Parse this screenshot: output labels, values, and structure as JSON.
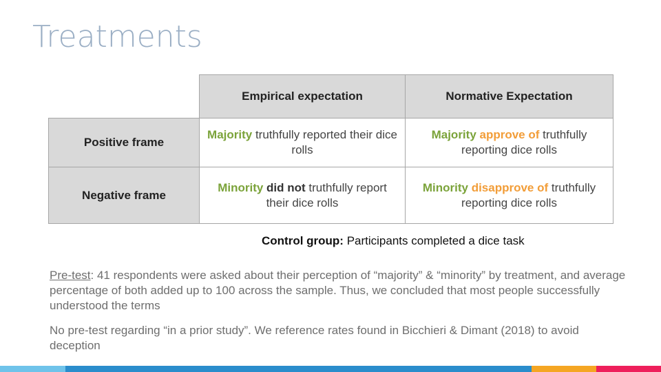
{
  "title": "Treatments",
  "table": {
    "col_headers": [
      "Empirical expectation",
      "Normative Expectation"
    ],
    "rows": [
      {
        "label": "Positive frame",
        "empirical": {
          "highlight": "Majority",
          "rest": " truthfully reported their dice rolls"
        },
        "normative": {
          "highlight": "Majority",
          "highlight2": " approve of",
          "rest": " truthfully reporting dice rolls"
        }
      },
      {
        "label": "Negative frame",
        "empirical": {
          "highlight": "Minority",
          "bold": " did not",
          "rest": " truthfully report their dice rolls"
        },
        "normative": {
          "highlight": "Minority",
          "highlight2": " disapprove of",
          "rest": " truthfully reporting dice rolls"
        }
      }
    ]
  },
  "control": {
    "label": "Control group:",
    "text": " Participants completed a dice task"
  },
  "pretest": {
    "label": "Pre-test",
    "text": ": 41 respondents were asked about their perception of “majority” & “minority” by treatment, and average percentage of both added up to 100 across the sample.  Thus, we concluded that most people successfully understood the terms"
  },
  "note": "No pre-test regarding “in a prior study”. We reference rates found in Bicchieri & Dimant (2018) to avoid deception",
  "colors": {
    "title": "#9aaec4",
    "green_accent": "#7ba33a",
    "orange_accent": "#f29d38",
    "header_fill": "#d9d9d9",
    "bar_segments": [
      "#6fc3ea",
      "#2a8dcc",
      "#f5a623",
      "#ee1f5b"
    ]
  }
}
